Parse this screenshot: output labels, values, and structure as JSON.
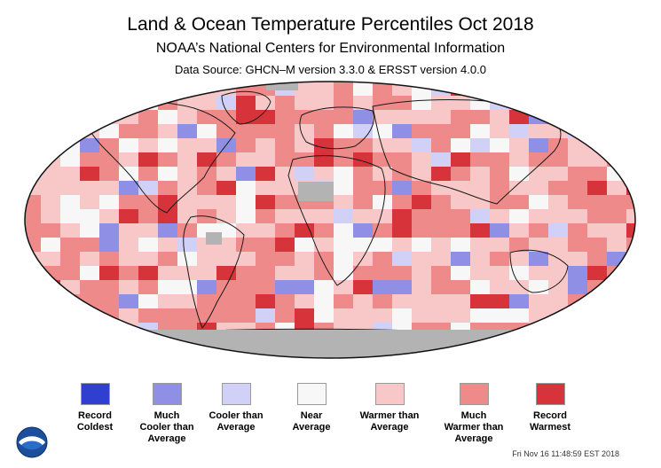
{
  "header": {
    "title": "Land & Ocean Temperature Percentiles Oct 2018",
    "subtitle": "NOAA’s National Centers for Environmental Information",
    "source": "Data Source: GHCN–M version 3.3.0 & ERSST version 4.0.0"
  },
  "legend": {
    "items": [
      {
        "label": "Record\nColdest",
        "color": "#2f3fd0"
      },
      {
        "label": "Much\nCooler than\nAverage",
        "color": "#8f8fe6"
      },
      {
        "label": "Cooler than\nAverage",
        "color": "#d1d1f7"
      },
      {
        "label": "Near\nAverage",
        "color": "#f7f7f7"
      },
      {
        "label": "Warmer than\nAverage",
        "color": "#f8c8c8"
      },
      {
        "label": "Much\nWarmer than\nAverage",
        "color": "#ee8a8a"
      },
      {
        "label": "Record\nWarmest",
        "color": "#d6333a"
      }
    ]
  },
  "map_colors": {
    "no_data": "#b3b3b3",
    "ocean_base": "#f4b8b8",
    "border": "#222222"
  },
  "timestamp": "Fri Nov 16 11:48:59 EST 2018",
  "logo": "noaa-logo"
}
